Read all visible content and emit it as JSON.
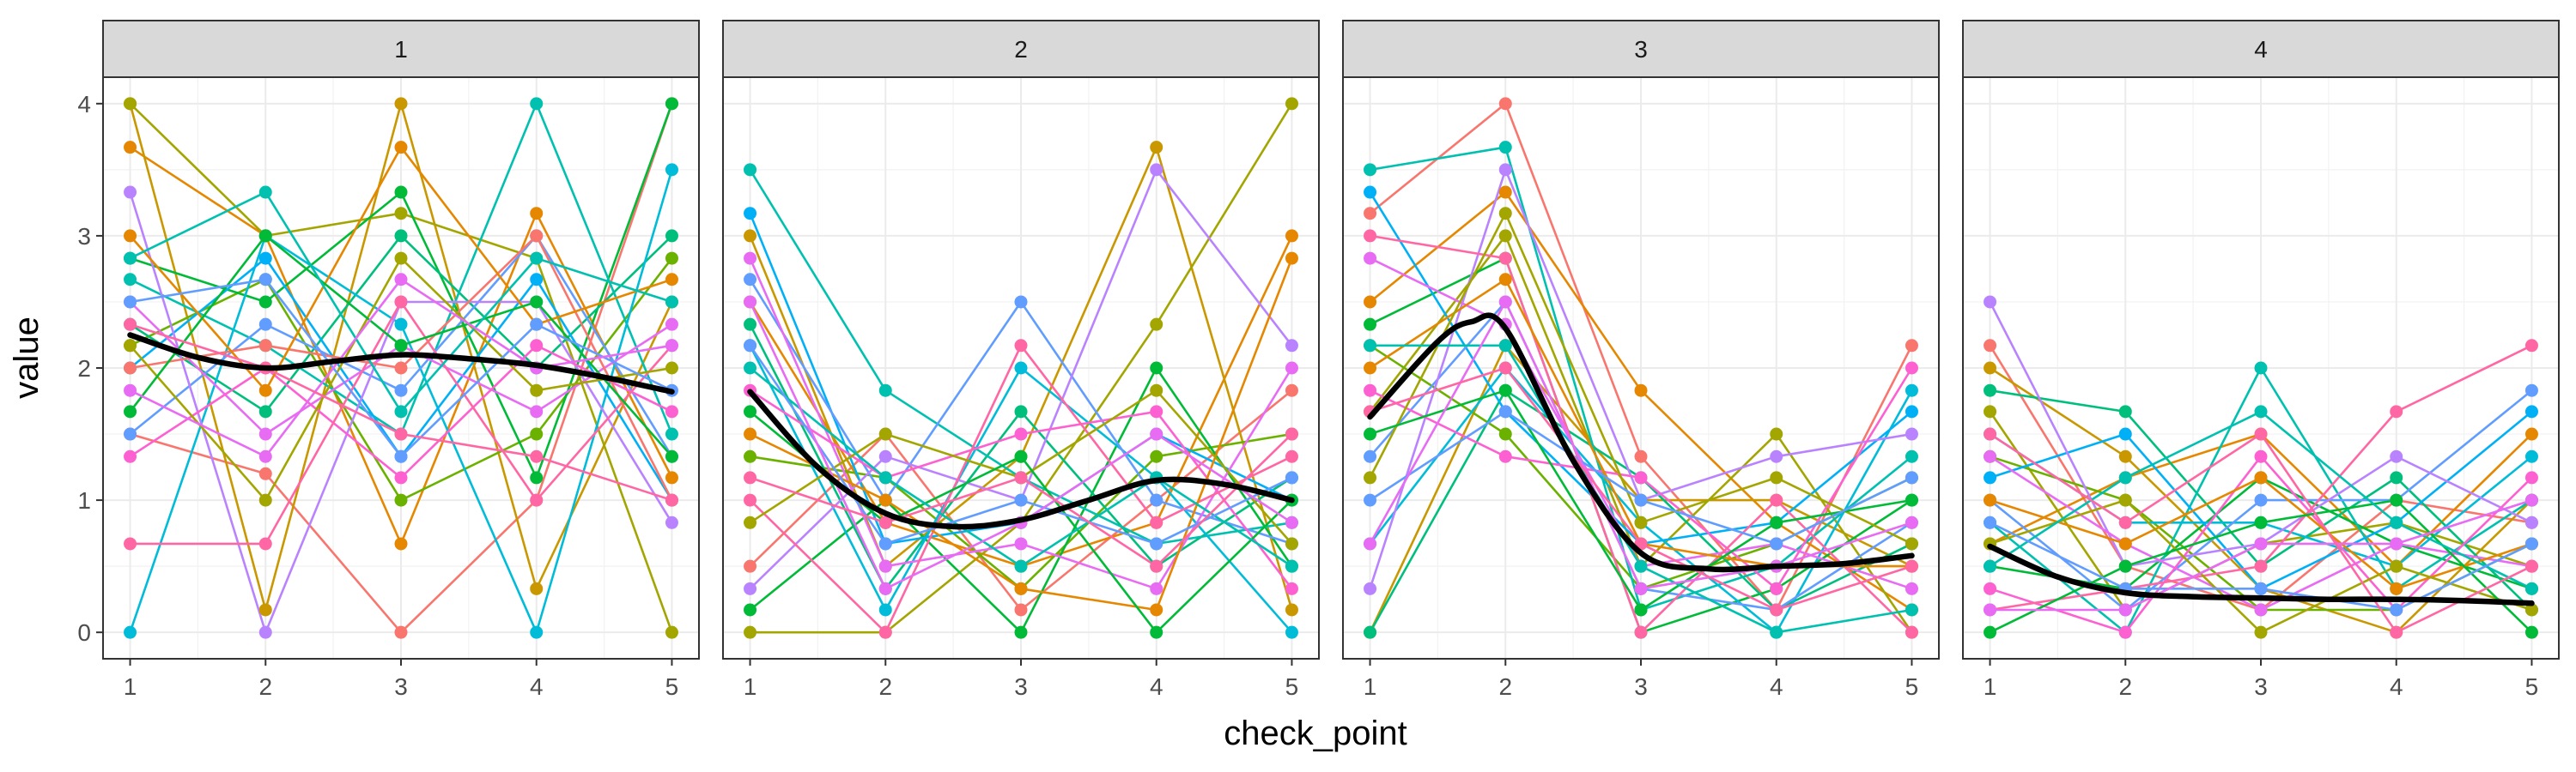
{
  "chart_data": {
    "type": "line",
    "xlabel": "check_point",
    "ylabel": "value",
    "x_ticks": [
      1,
      2,
      3,
      4,
      5
    ],
    "y_ticks": [
      0,
      1,
      2,
      3,
      4
    ],
    "xlim": [
      0.8,
      5.2
    ],
    "ylim": [
      -0.2,
      4.2
    ],
    "grid": true,
    "smooth_color": "#000000",
    "facets": [
      {
        "label": "1",
        "smooth": {
          "x": [
            1,
            1.5,
            2,
            2.5,
            3,
            3.5,
            4,
            4.5,
            5
          ],
          "y": [
            2.25,
            2.08,
            2.0,
            2.05,
            2.1,
            2.07,
            2.02,
            1.93,
            1.82
          ]
        },
        "lines": [
          {
            "color": "#F8766D",
            "values": [
              1.5,
              1.2,
              0,
              1,
              4
            ]
          },
          {
            "color": "#E58700",
            "values": [
              3.67,
              3.0,
              0.67,
              3.17,
              1.17
            ]
          },
          {
            "color": "#C99800",
            "values": [
              4,
              0.17,
              4,
              0.33,
              2.5
            ]
          },
          {
            "color": "#A3A500",
            "values": [
              4,
              3.0,
              3.17,
              2.83,
              0
            ]
          },
          {
            "color": "#6BB100",
            "values": [
              2.17,
              2.67,
              1.0,
              1.5,
              2.83
            ]
          },
          {
            "color": "#00BA38",
            "values": [
              2.83,
              2.5,
              3.33,
              1.17,
              4
            ]
          },
          {
            "color": "#00BF7D",
            "values": [
              2.33,
              1.67,
              3.0,
              2.0,
              3.0
            ]
          },
          {
            "color": "#00C0AF",
            "values": [
              2.67,
              2.17,
              1.5,
              4,
              1.5
            ]
          },
          {
            "color": "#00BCD8",
            "values": [
              0,
              3.0,
              2.33,
              0,
              3.5
            ]
          },
          {
            "color": "#00B0F6",
            "values": [
              2.0,
              2.83,
              1.33,
              2.67,
              1.0
            ]
          },
          {
            "color": "#619CFF",
            "values": [
              1.5,
              2.33,
              1.83,
              3.0,
              1.33
            ]
          },
          {
            "color": "#B983FF",
            "values": [
              3.33,
              0,
              2.5,
              2.5,
              0.83
            ]
          },
          {
            "color": "#E76BF3",
            "values": [
              2.5,
              1.5,
              2.17,
              1.67,
              2.33
            ]
          },
          {
            "color": "#FD61D1",
            "values": [
              1.33,
              2.0,
              1.17,
              2.17,
              1.67
            ]
          },
          {
            "color": "#FF67A4",
            "values": [
              0.67,
              0.67,
              2.5,
              1.0,
              2.17
            ]
          },
          {
            "color": "#F8766D",
            "values": [
              2.0,
              2.17,
              2.0,
              3.0,
              1.0
            ]
          },
          {
            "color": "#E58700",
            "values": [
              3.0,
              1.83,
              3.67,
              2.33,
              2.67
            ]
          },
          {
            "color": "#A3A500",
            "values": [
              2.17,
              1.0,
              2.83,
              1.83,
              2.0
            ]
          },
          {
            "color": "#00BA38",
            "values": [
              1.67,
              3.0,
              2.17,
              2.5,
              1.33
            ]
          },
          {
            "color": "#00C0AF",
            "values": [
              2.83,
              3.33,
              1.67,
              2.83,
              2.5
            ]
          },
          {
            "color": "#619CFF",
            "values": [
              2.5,
              2.67,
              1.33,
              2.33,
              1.83
            ]
          },
          {
            "color": "#E76BF3",
            "values": [
              1.83,
              1.33,
              2.67,
              2.0,
              2.17
            ]
          },
          {
            "color": "#FF67A4",
            "values": [
              2.33,
              2.0,
              1.5,
              1.33,
              1.0
            ]
          }
        ]
      },
      {
        "label": "2",
        "smooth": {
          "x": [
            1,
            1.5,
            2,
            2.5,
            3,
            3.5,
            4,
            4.5,
            5
          ],
          "y": [
            1.82,
            1.25,
            0.9,
            0.8,
            0.85,
            1.0,
            1.15,
            1.12,
            1.0
          ]
        },
        "lines": [
          {
            "color": "#F8766D",
            "values": [
              0.5,
              1.5,
              0.17,
              1.0,
              1.83
            ]
          },
          {
            "color": "#E58700",
            "values": [
              2.5,
              0.83,
              0.5,
              0.83,
              3.0
            ]
          },
          {
            "color": "#C99800",
            "values": [
              3.0,
              0.5,
              1.33,
              3.67,
              0.17
            ]
          },
          {
            "color": "#A3A500",
            "values": [
              0,
              0,
              0.83,
              2.33,
              4
            ]
          },
          {
            "color": "#6BB100",
            "values": [
              1.33,
              1.17,
              0.33,
              1.33,
              1.5
            ]
          },
          {
            "color": "#00BA38",
            "values": [
              0.17,
              1.0,
              0,
              2.0,
              0.5
            ]
          },
          {
            "color": "#00BF7D",
            "values": [
              2.33,
              0.33,
              1.67,
              0.5,
              1.17
            ]
          },
          {
            "color": "#00C0AF",
            "values": [
              3.5,
              1.83,
              1.17,
              0.67,
              0.83
            ]
          },
          {
            "color": "#00BCD8",
            "values": [
              2.17,
              0.17,
              2.0,
              1.17,
              0
            ]
          },
          {
            "color": "#00B0F6",
            "values": [
              3.17,
              0.67,
              0.83,
              1.5,
              1.0
            ]
          },
          {
            "color": "#619CFF",
            "values": [
              2.67,
              1.0,
              2.5,
              1.0,
              0.67
            ]
          },
          {
            "color": "#B983FF",
            "values": [
              0.33,
              1.33,
              1.0,
              3.5,
              2.17
            ]
          },
          {
            "color": "#E76BF3",
            "values": [
              2.83,
              0.5,
              0.67,
              0.33,
              2.0
            ]
          },
          {
            "color": "#FD61D1",
            "values": [
              1.83,
              1.17,
              1.5,
              1.67,
              0.33
            ]
          },
          {
            "color": "#FF67A4",
            "values": [
              1.0,
              0,
              2.17,
              0.83,
              1.33
            ]
          },
          {
            "color": "#E58700",
            "values": [
              1.5,
              1.0,
              0.33,
              0.17,
              2.83
            ]
          },
          {
            "color": "#A3A500",
            "values": [
              0.83,
              1.5,
              1.17,
              1.83,
              0.67
            ]
          },
          {
            "color": "#00BA38",
            "values": [
              1.67,
              0.83,
              1.33,
              0,
              1.0
            ]
          },
          {
            "color": "#00C0AF",
            "values": [
              2.0,
              1.17,
              0.5,
              1.17,
              0.5
            ]
          },
          {
            "color": "#619CFF",
            "values": [
              2.17,
              0.67,
              1.0,
              0.67,
              1.17
            ]
          },
          {
            "color": "#E76BF3",
            "values": [
              2.5,
              0.33,
              0.83,
              1.5,
              0.83
            ]
          },
          {
            "color": "#FF67A4",
            "values": [
              1.17,
              0.83,
              1.17,
              0.5,
              1.5
            ]
          }
        ]
      },
      {
        "label": "3",
        "smooth": {
          "x": [
            1,
            1.5,
            1.75,
            2,
            2.5,
            3,
            3.5,
            4,
            4.5,
            5
          ],
          "y": [
            1.63,
            2.2,
            2.35,
            2.3,
            1.3,
            0.6,
            0.48,
            0.5,
            0.52,
            0.58
          ]
        },
        "lines": [
          {
            "color": "#F8766D",
            "values": [
              3.17,
              4.0,
              1.33,
              0.17,
              2.17
            ]
          },
          {
            "color": "#E58700",
            "values": [
              2.5,
              3.33,
              1.83,
              0.83,
              0.17
            ]
          },
          {
            "color": "#C99800",
            "values": [
              0,
              2.17,
              1.0,
              1.0,
              0.5
            ]
          },
          {
            "color": "#A3A500",
            "values": [
              1.67,
              3.0,
              0.5,
              1.5,
              0
            ]
          },
          {
            "color": "#6BB100",
            "values": [
              2.17,
              1.5,
              0.33,
              0.67,
              1.17
            ]
          },
          {
            "color": "#00BA38",
            "values": [
              2.33,
              2.83,
              0,
              0.33,
              1.0
            ]
          },
          {
            "color": "#00BF7D",
            "values": [
              0,
              1.83,
              1.17,
              0.17,
              0.67
            ]
          },
          {
            "color": "#00C0AF",
            "values": [
              3.5,
              3.67,
              0.17,
              0.5,
              1.33
            ]
          },
          {
            "color": "#00BCD8",
            "values": [
              0.67,
              2.0,
              0.83,
              0,
              1.83
            ]
          },
          {
            "color": "#00B0F6",
            "values": [
              3.33,
              1.67,
              0.67,
              0.83,
              1.67
            ]
          },
          {
            "color": "#619CFF",
            "values": [
              1.33,
              2.5,
              0.33,
              0.17,
              0.83
            ]
          },
          {
            "color": "#B983FF",
            "values": [
              0.33,
              3.5,
              1.0,
              1.33,
              1.5
            ]
          },
          {
            "color": "#E76BF3",
            "values": [
              2.83,
              2.33,
              0.5,
              0.67,
              0.33
            ]
          },
          {
            "color": "#FD61D1",
            "values": [
              1.83,
              1.33,
              1.17,
              0.33,
              2.0
            ]
          },
          {
            "color": "#FF67A4",
            "values": [
              3.0,
              2.83,
              0,
              1.0,
              0
            ]
          },
          {
            "color": "#E58700",
            "values": [
              2.0,
              2.67,
              0.67,
              0.5,
              0.5
            ]
          },
          {
            "color": "#A3A500",
            "values": [
              1.17,
              3.17,
              0.83,
              1.17,
              0.67
            ]
          },
          {
            "color": "#00BA38",
            "values": [
              1.5,
              1.83,
              0.17,
              0.83,
              1.0
            ]
          },
          {
            "color": "#00C0AF",
            "values": [
              2.17,
              2.17,
              0.5,
              0,
              0.17
            ]
          },
          {
            "color": "#619CFF",
            "values": [
              1.0,
              1.67,
              1.0,
              0.67,
              1.17
            ]
          },
          {
            "color": "#E76BF3",
            "values": [
              0.67,
              2.5,
              0.33,
              0.5,
              0.83
            ]
          },
          {
            "color": "#FF67A4",
            "values": [
              1.67,
              2.0,
              0.67,
              0.17,
              0.5
            ]
          }
        ]
      },
      {
        "label": "4",
        "smooth": {
          "x": [
            1,
            1.5,
            2,
            2.5,
            3,
            3.5,
            4,
            4.5,
            5
          ],
          "y": [
            0.65,
            0.42,
            0.3,
            0.27,
            0.26,
            0.25,
            0.25,
            0.24,
            0.22
          ]
        },
        "lines": [
          {
            "color": "#F8766D",
            "values": [
              2.17,
              0.5,
              0.17,
              1.0,
              0.83
            ]
          },
          {
            "color": "#E58700",
            "values": [
              0.67,
              1.17,
              1.5,
              0.5,
              1.5
            ]
          },
          {
            "color": "#C99800",
            "values": [
              2.0,
              1.33,
              0.33,
              0,
              1.0
            ]
          },
          {
            "color": "#A3A500",
            "values": [
              1.67,
              0.17,
              0.67,
              0.83,
              0.5
            ]
          },
          {
            "color": "#6BB100",
            "values": [
              1.33,
              1.0,
              0.17,
              0.17,
              0.67
            ]
          },
          {
            "color": "#00BA38",
            "values": [
              0.5,
              0.33,
              1.17,
              0.67,
              0.33
            ]
          },
          {
            "color": "#00BF7D",
            "values": [
              1.83,
              1.67,
              0.5,
              1.17,
              0.17
            ]
          },
          {
            "color": "#00C0AF",
            "values": [
              0.83,
              0,
              2.0,
              0.33,
              1.0
            ]
          },
          {
            "color": "#00BCD8",
            "values": [
              1.5,
              0.83,
              0.83,
              0.5,
              1.33
            ]
          },
          {
            "color": "#00B0F6",
            "values": [
              1.17,
              1.5,
              0.33,
              0.83,
              1.67
            ]
          },
          {
            "color": "#619CFF",
            "values": [
              1.0,
              0.17,
              1.0,
              1.0,
              1.83
            ]
          },
          {
            "color": "#B983FF",
            "values": [
              2.5,
              0.5,
              0.67,
              1.33,
              0.83
            ]
          },
          {
            "color": "#E76BF3",
            "values": [
              1.33,
              0.67,
              0.17,
              0.67,
              0.5
            ]
          },
          {
            "color": "#FD61D1",
            "values": [
              0.33,
              0,
              1.33,
              0.17,
              1.17
            ]
          },
          {
            "color": "#FF67A4",
            "values": [
              0.17,
              0.33,
              0.5,
              1.67,
              2.17
            ]
          },
          {
            "color": "#E58700",
            "values": [
              1.0,
              0.67,
              1.17,
              0.33,
              0.67
            ]
          },
          {
            "color": "#A3A500",
            "values": [
              0.67,
              1.0,
              0,
              0.5,
              0.17
            ]
          },
          {
            "color": "#00BA38",
            "values": [
              0,
              0.5,
              0.83,
              1.0,
              0
            ]
          },
          {
            "color": "#00C0AF",
            "values": [
              0.5,
              1.17,
              1.67,
              0.83,
              0.33
            ]
          },
          {
            "color": "#619CFF",
            "values": [
              0.83,
              0.33,
              0.33,
              0.17,
              0.67
            ]
          },
          {
            "color": "#E76BF3",
            "values": [
              0.17,
              0.17,
              0.67,
              0.67,
              1.0
            ]
          },
          {
            "color": "#FF67A4",
            "values": [
              1.5,
              0.83,
              1.5,
              0,
              0.5
            ]
          }
        ]
      }
    ]
  }
}
